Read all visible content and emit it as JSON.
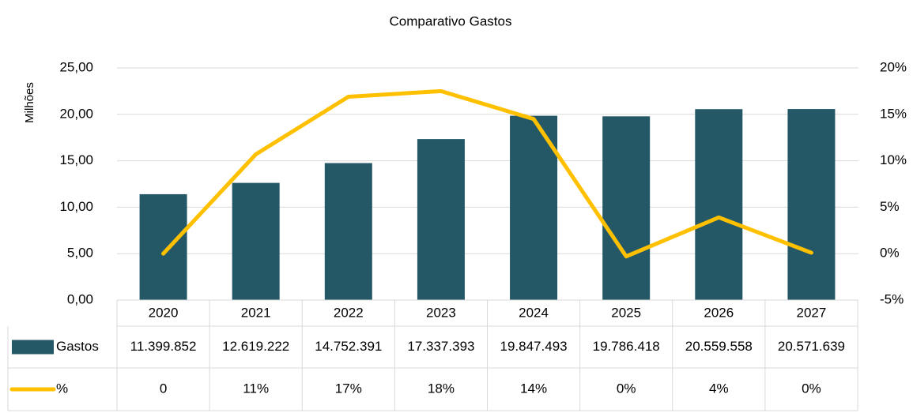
{
  "chart_data": {
    "type": "bar",
    "title": "Comparativo Gastos",
    "y_label": "Milhões",
    "categories": [
      "2020",
      "2021",
      "2022",
      "2023",
      "2024",
      "2025",
      "2026",
      "2027"
    ],
    "series": [
      {
        "name": "Gastos",
        "type": "bar",
        "color": "#255866",
        "values": [
          11.399852,
          12.619222,
          14.752391,
          17.337393,
          19.847493,
          19.786418,
          20.559558,
          20.571639
        ],
        "value_labels": [
          "11.399.852",
          "12.619.222",
          "14.752.391",
          "17.337.393",
          "19.847.493",
          "19.786.418",
          "20.559.558",
          "20.571.639"
        ]
      },
      {
        "name": "%",
        "type": "line",
        "axis": "y2",
        "color": "#ffc000",
        "values": [
          0,
          10.7,
          16.9,
          17.5,
          14.5,
          -0.3,
          3.9,
          0.1
        ],
        "value_labels": [
          "0",
          "11%",
          "17%",
          "18%",
          "14%",
          "0%",
          "4%",
          "0%"
        ]
      }
    ],
    "ylim": [
      0,
      25
    ],
    "yticks": [
      {
        "value": 0,
        "label": "0,00"
      },
      {
        "value": 5,
        "label": "5,00"
      },
      {
        "value": 10,
        "label": "10,00"
      },
      {
        "value": 15,
        "label": "15,00"
      },
      {
        "value": 20,
        "label": "20,00"
      },
      {
        "value": 25,
        "label": "25,00"
      }
    ],
    "y2lim": [
      -5,
      20
    ],
    "y2ticks": [
      {
        "value": -5,
        "label": "-5%"
      },
      {
        "value": 0,
        "label": "0%"
      },
      {
        "value": 5,
        "label": "5%"
      },
      {
        "value": 10,
        "label": "10%"
      },
      {
        "value": 15,
        "label": "15%"
      },
      {
        "value": 20,
        "label": "20%"
      }
    ],
    "grid": true
  }
}
